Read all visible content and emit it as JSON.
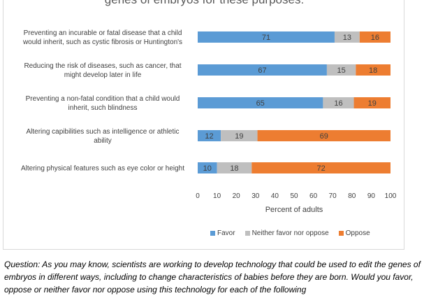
{
  "question_text": "Question: As you may know, scientists are working to develop technology that could be used to edit the genes of embryos in different ways, including to change characteristics of babies before they are born. Would you favor, oppose or neither favor nor oppose using this technology for each of the following",
  "chart_data": {
    "type": "bar",
    "orientation": "horizontal",
    "stacked": true,
    "title": "genes of embryos for these purposes:",
    "xlabel": "Percent of adults",
    "ylabel": "",
    "xlim": [
      0,
      100
    ],
    "xticks": [
      0,
      10,
      20,
      30,
      40,
      50,
      60,
      70,
      80,
      90,
      100
    ],
    "grid": false,
    "legend_position": "bottom",
    "categories": [
      [
        "Preventing an incurable or fatal disease that a child",
        "would inherit, such as cystic fibrosis or Huntington's"
      ],
      [
        "Reducing the risk of diseases, such as cancer, that",
        "might develop later in life"
      ],
      [
        "Preventing a non-fatal condition that a child would",
        "inherit, such blindness"
      ],
      [
        "Altering capibilities such as intelligence or athletic",
        "ability"
      ],
      [
        "Altering physical features such as eye color or height"
      ]
    ],
    "series": [
      {
        "name": "Favor",
        "color": "#5b9bd5",
        "values": [
          71,
          67,
          65,
          12,
          10
        ]
      },
      {
        "name": "Neither favor nor oppose",
        "color": "#bfbfbf",
        "values": [
          13,
          15,
          16,
          19,
          18
        ]
      },
      {
        "name": "Oppose",
        "color": "#ed7d31",
        "values": [
          16,
          18,
          19,
          69,
          72
        ]
      }
    ]
  }
}
